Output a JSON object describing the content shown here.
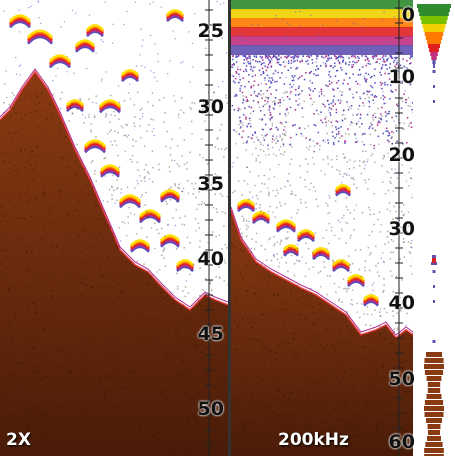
{
  "zoom_panel": {
    "zoom_label": "2X",
    "depth_scale": [
      "25",
      "30",
      "35",
      "40",
      "45",
      "50"
    ]
  },
  "main_panel": {
    "frequency_label": "200kHz",
    "depth_scale": [
      "0",
      "10",
      "20",
      "30",
      "40",
      "50",
      "60"
    ]
  },
  "colors": {
    "bottom": "#8a3a12",
    "bottom_dark": "#4a1c08",
    "background": "#ffffff",
    "surface_clutter": [
      "#2e8b2e",
      "#f0d000",
      "#ff7a00",
      "#e02020",
      "#c03080",
      "#6050b0"
    ],
    "fish_arch": [
      "#ffe000",
      "#ff8000",
      "#e02020",
      "#b03090",
      "#5050c0"
    ]
  }
}
